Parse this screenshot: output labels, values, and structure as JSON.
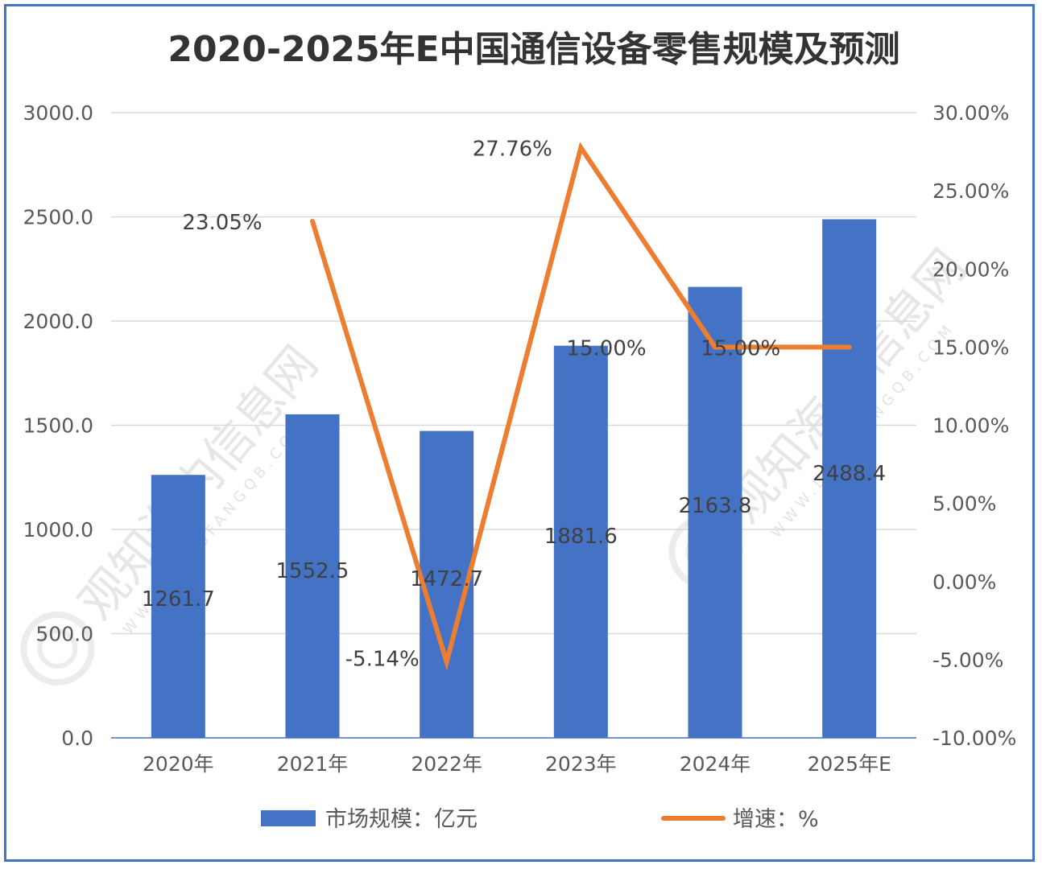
{
  "chart_data": {
    "type": "bar",
    "title": "2020-2025年E中国通信设备零售规模及预测",
    "categories": [
      "2020年",
      "2021年",
      "2022年",
      "2023年",
      "2024年",
      "2025年E"
    ],
    "series": [
      {
        "name": "市场规模：亿元",
        "type": "bar",
        "axis": "left",
        "color": "#4472c4",
        "values": [
          1261.7,
          1552.5,
          1472.7,
          1881.6,
          2163.8,
          2488.4
        ],
        "labels": [
          "1261.7",
          "1552.5",
          "1472.7",
          "1881.6",
          "2163.8",
          "2488.4"
        ]
      },
      {
        "name": "增速：%",
        "type": "line",
        "axis": "right",
        "color": "#ed7d31",
        "values": [
          null,
          23.05,
          -5.14,
          27.76,
          15.0,
          15.0
        ],
        "labels": [
          "",
          "23.05%",
          "-5.14%",
          "27.76%",
          "15.00%",
          "15.00%"
        ]
      }
    ],
    "y_left": {
      "range": [
        0,
        3000
      ],
      "ticks": [
        0,
        500,
        1000,
        1500,
        2000,
        2500,
        3000
      ],
      "tick_labels": [
        "0.0",
        "500.0",
        "1000.0",
        "1500.0",
        "2000.0",
        "2500.0",
        "3000.0"
      ]
    },
    "y_right": {
      "range": [
        -10,
        30
      ],
      "ticks": [
        -10,
        -5,
        0,
        5,
        10,
        15,
        20,
        25,
        30
      ],
      "tick_labels": [
        "-10.00%",
        "-5.00%",
        "0.00%",
        "5.00%",
        "10.00%",
        "15.00%",
        "20.00%",
        "25.00%",
        "30.00%"
      ]
    },
    "grid": true,
    "legend": "bottom"
  },
  "watermark": {
    "text": "观知海内信息网",
    "url": "WWW.DONGFANGQB.COM"
  }
}
